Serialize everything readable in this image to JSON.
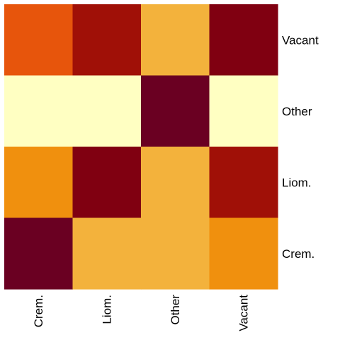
{
  "chart_data": {
    "type": "heatmap",
    "x_labels": [
      "Crem.",
      "Liom.",
      "Other",
      "Vacant"
    ],
    "y_labels": [
      "Vacant",
      "Other",
      "Liom.",
      "Crem."
    ],
    "values": [
      [
        0.65,
        0.8,
        0.3,
        0.9
      ],
      [
        0.0,
        0.0,
        1.0,
        0.0
      ],
      [
        0.5,
        0.9,
        0.3,
        0.8
      ],
      [
        1.0,
        0.3,
        0.3,
        0.5
      ]
    ],
    "colormap": [
      "#ffffc2",
      "#f6c666",
      "#f2ad32",
      "#f0900e",
      "#e64e0c",
      "#8e0006",
      "#6a0022"
    ],
    "title": "",
    "xlabel": "",
    "ylabel": ""
  }
}
